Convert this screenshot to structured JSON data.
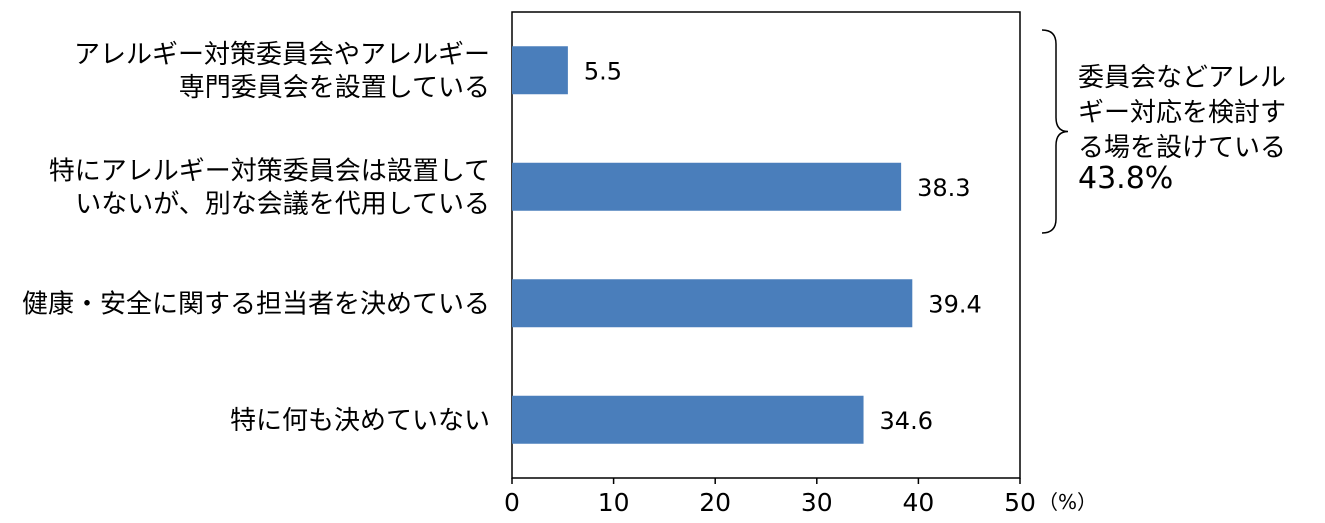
{
  "chart_data": {
    "type": "bar",
    "orientation": "horizontal",
    "categories": [
      [
        "アレルギー対策委員会やアレルギー",
        "専門委員会を設置している"
      ],
      [
        "特にアレルギー対策委員会は設置して",
        "いないが、別な会議を代用している"
      ],
      [
        "健康・安全に関する担当者を決めている"
      ],
      [
        "特に何も決めていない"
      ]
    ],
    "values": [
      5.5,
      38.3,
      39.4,
      34.6
    ],
    "value_labels": [
      "5.5",
      "38.3",
      "39.4",
      "34.6"
    ],
    "xlim": [
      0,
      50
    ],
    "xticks": [
      0,
      10,
      20,
      30,
      40,
      50
    ],
    "xtick_labels": [
      "0",
      "10",
      "20",
      "30",
      "40",
      "50"
    ],
    "unit": "（%）",
    "grid": false,
    "bar_color": "#4a7ebb",
    "annotation": {
      "lines": [
        "委員会などアレル",
        "ギー対応を検討す",
        "る場を設けている"
      ],
      "value": "43.8%",
      "spans_categories": [
        0,
        1
      ]
    }
  }
}
